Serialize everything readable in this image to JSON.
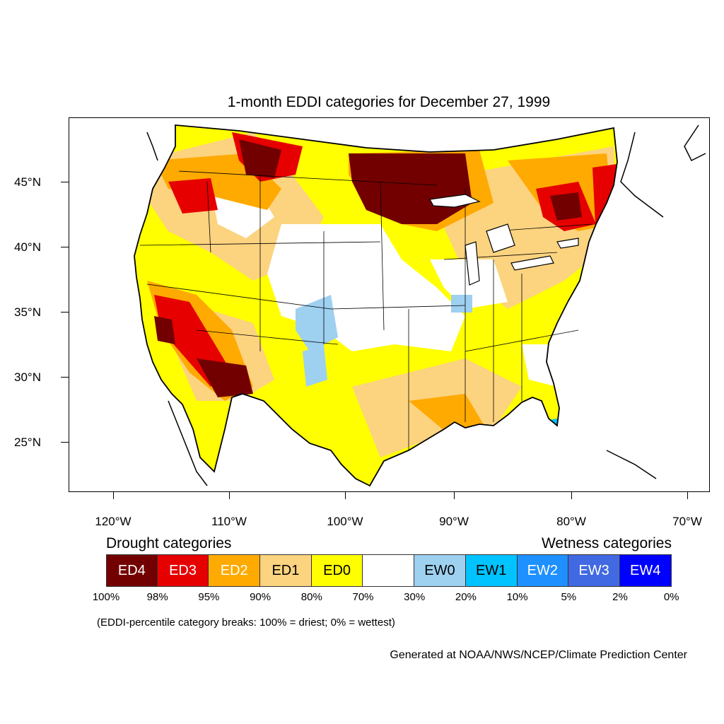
{
  "title": "1-month EDDI categories for December 27, 1999",
  "lat_labels": [
    "45°N",
    "40°N",
    "35°N",
    "30°N",
    "25°N"
  ],
  "lon_labels": [
    "120°W",
    "110°W",
    "100°W",
    "90°W",
    "80°W",
    "70°W"
  ],
  "legend": {
    "drought_title": "Drought categories",
    "wetness_title": "Wetness categories",
    "categories": [
      {
        "label": "ED4",
        "color": "#730000",
        "text_color": "#ffffff"
      },
      {
        "label": "ED3",
        "color": "#e60000",
        "text_color": "#ffffff"
      },
      {
        "label": "ED2",
        "color": "#ffaa00",
        "text_color": "#ffffff"
      },
      {
        "label": "ED1",
        "color": "#fcd37f",
        "text_color": "#000000"
      },
      {
        "label": "ED0",
        "color": "#ffff00",
        "text_color": "#000000"
      },
      {
        "label": "",
        "color": "#ffffff",
        "text_color": "#000000"
      },
      {
        "label": "EW0",
        "color": "#9ed0f0",
        "text_color": "#000000"
      },
      {
        "label": "EW1",
        "color": "#00c3ff",
        "text_color": "#000000"
      },
      {
        "label": "EW2",
        "color": "#1e90ff",
        "text_color": "#ffffff"
      },
      {
        "label": "EW3",
        "color": "#4169e1",
        "text_color": "#ffffff"
      },
      {
        "label": "EW4",
        "color": "#0000ff",
        "text_color": "#ffffff"
      }
    ],
    "breaks": [
      "100%",
      "98%",
      "95%",
      "90%",
      "80%",
      "70%",
      "30%",
      "20%",
      "10%",
      "5%",
      "2%",
      "0%"
    ]
  },
  "note": "(EDDI-percentile category breaks: 100% = driest; 0% = wettest)",
  "credit": "Generated at NOAA/NWS/NCEP/Climate Prediction Center"
}
